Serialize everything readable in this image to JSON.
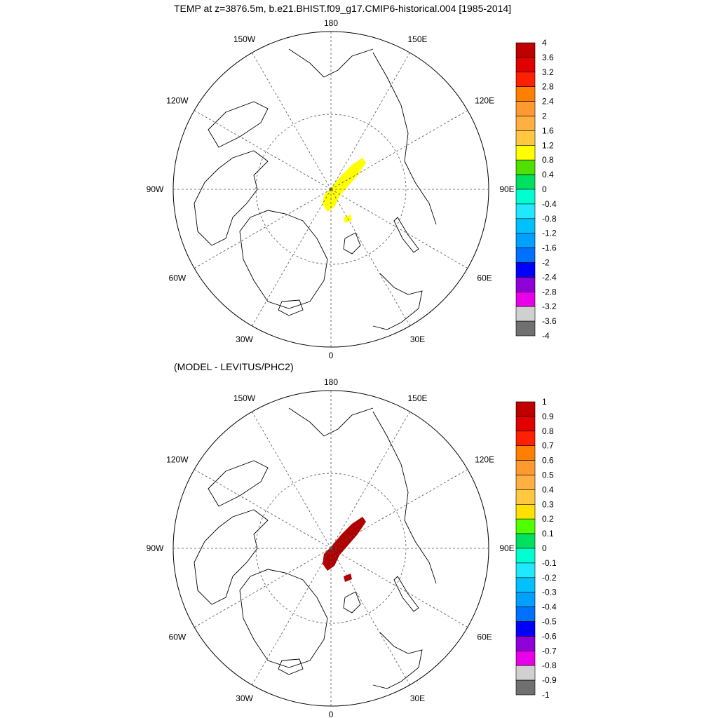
{
  "title": "TEMP at z=3876.5m, b.e21.BHIST.f09_g17.CMIP6-historical.004 [1985-2014]",
  "subtitle": "(MODEL - LEVITUS/PHC2)",
  "longitude_labels": {
    "top": "180",
    "bottom": "0",
    "left": "90W",
    "right": "90E",
    "upper_left": "150W",
    "upper_right": "150E",
    "mid_left": "120W",
    "mid_right": "120E",
    "lower_left": "60W",
    "lower_right": "60E",
    "bottom_left": "30W",
    "bottom_right": "30E"
  },
  "panels": [
    {
      "name": "model-temperature",
      "colorbar": {
        "labels": [
          "4",
          "3.6",
          "3.2",
          "2.8",
          "2.4",
          "2",
          "1.6",
          "1.2",
          "0.8",
          "0.4",
          "0",
          "-0.4",
          "-0.8",
          "-1.2",
          "-1.6",
          "-2",
          "-2.4",
          "-2.8",
          "-3.2",
          "-3.6",
          "-4"
        ],
        "colors": [
          "#c00000",
          "#e00000",
          "#ff2000",
          "#ff8000",
          "#ff9a30",
          "#ffb040",
          "#ffc840",
          "#ffff00",
          "#50e000",
          "#00e060",
          "#00ffd0",
          "#20e8ff",
          "#00c0ff",
          "#00a0ff",
          "#0070ff",
          "#0000ff",
          "#9000d8",
          "#e800e8",
          "#d0d0d0",
          "#707070"
        ]
      },
      "field_color": "#ffff00"
    },
    {
      "name": "model-minus-levitus",
      "colorbar": {
        "labels": [
          "1",
          "0.9",
          "0.8",
          "0.7",
          "0.6",
          "0.5",
          "0.4",
          "0.3",
          "0.2",
          "0.1",
          "0",
          "-0.1",
          "-0.2",
          "-0.3",
          "-0.4",
          "-0.5",
          "-0.6",
          "-0.7",
          "-0.8",
          "-0.9",
          "-1"
        ],
        "colors": [
          "#c00000",
          "#e00000",
          "#ff2000",
          "#ff8000",
          "#ff9a30",
          "#ffb040",
          "#ffc840",
          "#ffe000",
          "#50ff00",
          "#00e060",
          "#00ffd0",
          "#20e8ff",
          "#00c0ff",
          "#00a0ff",
          "#0070ff",
          "#0000ff",
          "#9000d8",
          "#e800e8",
          "#d0d0d0",
          "#707070"
        ]
      },
      "field_color": "#b00000"
    }
  ]
}
